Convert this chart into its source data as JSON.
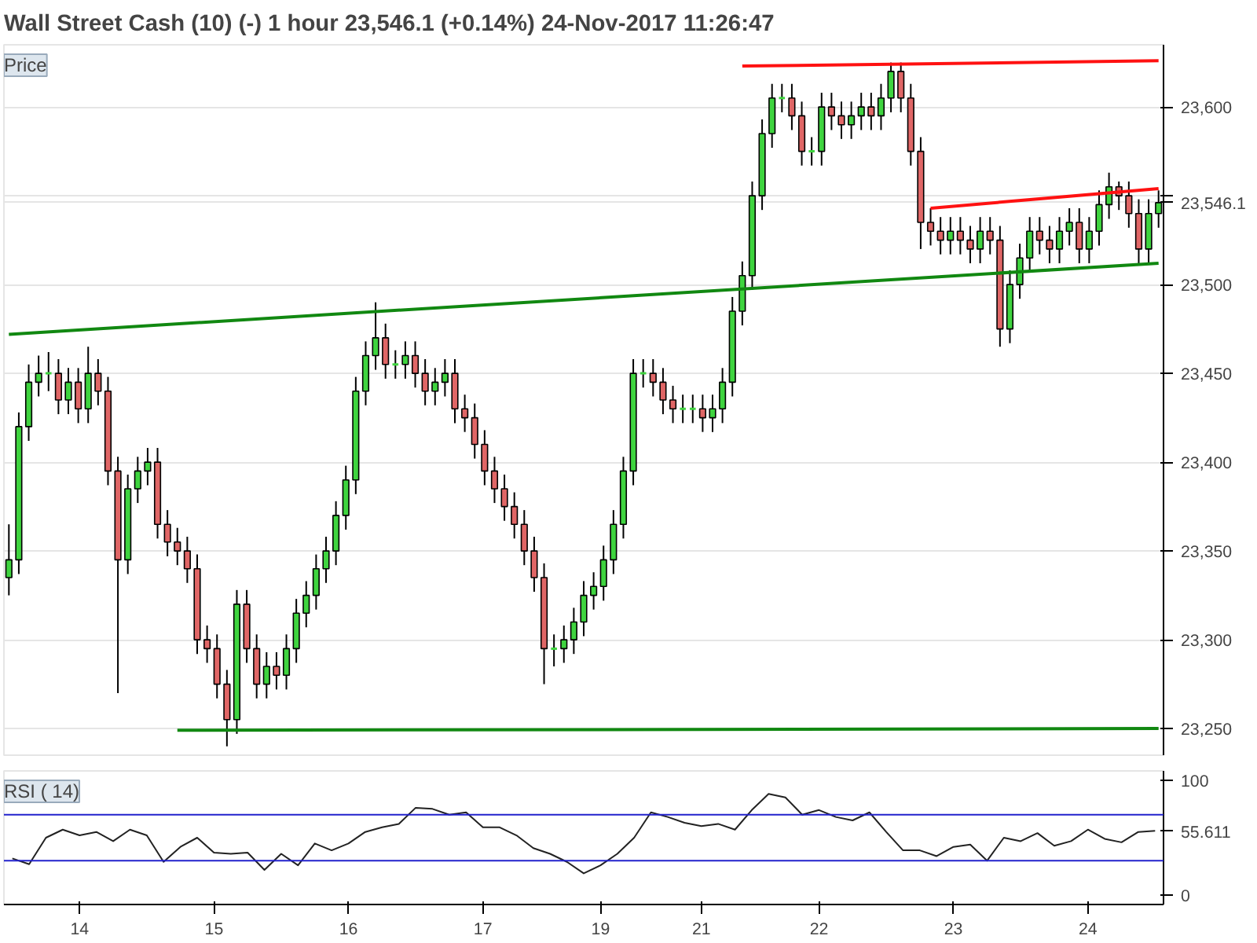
{
  "chart_data": [
    {
      "type": "candlestick",
      "title": "Wall Street Cash (10) (-)   1 hour   23,546.1 (+0.14%)   24-Nov-2017 11:26:47",
      "annotations": [
        "Price"
      ],
      "categories": [
        null,
        null,
        null,
        null,
        null,
        null,
        null,
        null,
        null,
        null,
        null,
        null,
        null,
        null,
        null,
        null,
        null,
        null,
        null,
        null,
        null,
        null,
        null,
        null,
        null,
        null,
        null,
        null,
        null,
        null,
        null,
        null,
        null,
        null,
        null,
        null,
        null,
        null,
        null,
        null,
        null,
        null,
        null,
        null,
        null,
        null,
        null,
        null,
        null,
        null,
        null,
        null,
        null,
        null,
        null,
        null,
        null,
        null,
        null,
        null,
        null,
        null,
        null,
        null,
        null,
        null,
        null,
        null,
        null,
        null,
        null,
        null,
        null,
        null,
        null,
        null,
        null,
        null,
        null,
        null,
        null,
        null,
        null,
        null,
        null,
        null,
        null,
        null,
        null,
        null,
        null,
        null,
        null,
        null,
        null,
        null,
        null,
        null,
        null,
        null,
        null,
        null,
        null,
        null,
        null,
        null,
        null,
        null,
        null,
        null,
        null,
        null,
        null,
        null,
        null,
        null,
        null
      ],
      "ohlc": [
        [
          23335,
          23365,
          23325,
          23345
        ],
        [
          23345,
          23428,
          23337,
          23420
        ],
        [
          23420,
          23455,
          23412,
          23445
        ],
        [
          23445,
          23460,
          23437,
          23450
        ],
        [
          23450,
          23462,
          23440,
          23450
        ],
        [
          23450,
          23458,
          23427,
          23435
        ],
        [
          23435,
          23453,
          23427,
          23445
        ],
        [
          23445,
          23453,
          23422,
          23430
        ],
        [
          23430,
          23465,
          23422,
          23450
        ],
        [
          23450,
          23458,
          23432,
          23440
        ],
        [
          23440,
          23448,
          23387,
          23395
        ],
        [
          23395,
          23403,
          23270,
          23345
        ],
        [
          23345,
          23393,
          23337,
          23385
        ],
        [
          23385,
          23403,
          23377,
          23395
        ],
        [
          23395,
          23408,
          23387,
          23400
        ],
        [
          23400,
          23408,
          23357,
          23365
        ],
        [
          23365,
          23373,
          23347,
          23355
        ],
        [
          23355,
          23363,
          23342,
          23350
        ],
        [
          23350,
          23358,
          23332,
          23340
        ],
        [
          23340,
          23348,
          23292,
          23300
        ],
        [
          23300,
          23308,
          23287,
          23295
        ],
        [
          23295,
          23303,
          23267,
          23275
        ],
        [
          23275,
          23283,
          23240,
          23255
        ],
        [
          23255,
          23328,
          23247,
          23320
        ],
        [
          23320,
          23328,
          23287,
          23295
        ],
        [
          23295,
          23303,
          23267,
          23275
        ],
        [
          23275,
          23293,
          23267,
          23285
        ],
        [
          23285,
          23293,
          23272,
          23280
        ],
        [
          23280,
          23303,
          23272,
          23295
        ],
        [
          23295,
          23323,
          23287,
          23315
        ],
        [
          23315,
          23333,
          23307,
          23325
        ],
        [
          23325,
          23348,
          23317,
          23340
        ],
        [
          23340,
          23358,
          23332,
          23350
        ],
        [
          23350,
          23378,
          23342,
          23370
        ],
        [
          23370,
          23398,
          23362,
          23390
        ],
        [
          23390,
          23448,
          23382,
          23440
        ],
        [
          23440,
          23468,
          23432,
          23460
        ],
        [
          23460,
          23490,
          23452,
          23470
        ],
        [
          23470,
          23478,
          23447,
          23455
        ],
        [
          23455,
          23463,
          23447,
          23455
        ],
        [
          23455,
          23468,
          23447,
          23460
        ],
        [
          23460,
          23468,
          23442,
          23450
        ],
        [
          23450,
          23458,
          23432,
          23440
        ],
        [
          23440,
          23453,
          23432,
          23445
        ],
        [
          23445,
          23458,
          23437,
          23450
        ],
        [
          23450,
          23458,
          23422,
          23430
        ],
        [
          23430,
          23438,
          23417,
          23425
        ],
        [
          23425,
          23433,
          23402,
          23410
        ],
        [
          23410,
          23418,
          23387,
          23395
        ],
        [
          23395,
          23403,
          23377,
          23385
        ],
        [
          23385,
          23393,
          23367,
          23375
        ],
        [
          23375,
          23383,
          23357,
          23365
        ],
        [
          23365,
          23373,
          23342,
          23350
        ],
        [
          23350,
          23358,
          23327,
          23335
        ],
        [
          23335,
          23343,
          23275,
          23295
        ],
        [
          23295,
          23303,
          23285,
          23295
        ],
        [
          23295,
          23308,
          23287,
          23300
        ],
        [
          23300,
          23318,
          23292,
          23310
        ],
        [
          23310,
          23333,
          23302,
          23325
        ],
        [
          23325,
          23338,
          23317,
          23330
        ],
        [
          23330,
          23353,
          23322,
          23345
        ],
        [
          23345,
          23373,
          23337,
          23365
        ],
        [
          23365,
          23403,
          23357,
          23395
        ],
        [
          23395,
          23458,
          23387,
          23450
        ],
        [
          23450,
          23458,
          23442,
          23450
        ],
        [
          23450,
          23458,
          23437,
          23445
        ],
        [
          23445,
          23453,
          23427,
          23435
        ],
        [
          23435,
          23443,
          23422,
          23430
        ],
        [
          23430,
          23438,
          23422,
          23430
        ],
        [
          23430,
          23438,
          23422,
          23430
        ],
        [
          23430,
          23438,
          23417,
          23425
        ],
        [
          23425,
          23438,
          23417,
          23430
        ],
        [
          23430,
          23453,
          23422,
          23445
        ],
        [
          23445,
          23493,
          23437,
          23485
        ],
        [
          23485,
          23513,
          23477,
          23505
        ],
        [
          23505,
          23558,
          23497,
          23550
        ],
        [
          23550,
          23593,
          23542,
          23585
        ],
        [
          23585,
          23613,
          23577,
          23605
        ],
        [
          23605,
          23613,
          23597,
          23605
        ],
        [
          23605,
          23613,
          23587,
          23595
        ],
        [
          23595,
          23603,
          23567,
          23575
        ],
        [
          23575,
          23583,
          23567,
          23575
        ],
        [
          23575,
          23608,
          23567,
          23600
        ],
        [
          23600,
          23608,
          23587,
          23595
        ],
        [
          23595,
          23603,
          23582,
          23590
        ],
        [
          23590,
          23603,
          23582,
          23595
        ],
        [
          23595,
          23608,
          23587,
          23600
        ],
        [
          23600,
          23608,
          23587,
          23595
        ],
        [
          23595,
          23613,
          23587,
          23605
        ],
        [
          23605,
          23625,
          23597,
          23620
        ],
        [
          23620,
          23625,
          23597,
          23605
        ],
        [
          23605,
          23613,
          23567,
          23575
        ],
        [
          23575,
          23583,
          23520,
          23535
        ],
        [
          23535,
          23543,
          23522,
          23530
        ],
        [
          23530,
          23538,
          23517,
          23525
        ],
        [
          23525,
          23538,
          23517,
          23530
        ],
        [
          23530,
          23538,
          23517,
          23525
        ],
        [
          23525,
          23533,
          23512,
          23520
        ],
        [
          23520,
          23538,
          23512,
          23530
        ],
        [
          23530,
          23538,
          23517,
          23525
        ],
        [
          23525,
          23533,
          23465,
          23475
        ],
        [
          23475,
          23508,
          23467,
          23500
        ],
        [
          23500,
          23523,
          23492,
          23515
        ],
        [
          23515,
          23538,
          23507,
          23530
        ],
        [
          23530,
          23538,
          23517,
          23525
        ],
        [
          23525,
          23533,
          23512,
          23520
        ],
        [
          23520,
          23538,
          23512,
          23530
        ],
        [
          23530,
          23543,
          23522,
          23535
        ],
        [
          23535,
          23543,
          23512,
          23520
        ],
        [
          23520,
          23538,
          23512,
          23530
        ],
        [
          23530,
          23553,
          23522,
          23545
        ],
        [
          23545,
          23563,
          23537,
          23555
        ],
        [
          23555,
          23558,
          23542,
          23550
        ],
        [
          23550,
          23558,
          23532,
          23540
        ],
        [
          23540,
          23548,
          23512,
          23520
        ],
        [
          23520,
          23548,
          23512,
          23540
        ],
        [
          23540,
          23553,
          23532,
          23546.1
        ]
      ],
      "colors": [
        "#3fd43f",
        "#3fd43f",
        "#3fd43f",
        "#3fd43f",
        "#3fd43f",
        "#e06666",
        "#3fd43f",
        "#e06666",
        "#3fd43f",
        "#e06666",
        "#e06666",
        "#e06666",
        "#3fd43f",
        "#3fd43f",
        "#3fd43f",
        "#e06666",
        "#e06666",
        "#e06666",
        "#e06666",
        "#e06666",
        "#e06666",
        "#e06666",
        "#e06666",
        "#3fd43f",
        "#e06666",
        "#e06666",
        "#3fd43f",
        "#e06666",
        "#3fd43f",
        "#3fd43f",
        "#3fd43f",
        "#3fd43f",
        "#3fd43f",
        "#3fd43f",
        "#3fd43f",
        "#3fd43f",
        "#3fd43f",
        "#3fd43f",
        "#e06666",
        "#3fd43f",
        "#3fd43f",
        "#e06666",
        "#e06666",
        "#3fd43f",
        "#3fd43f",
        "#e06666",
        "#e06666",
        "#e06666",
        "#e06666",
        "#e06666",
        "#e06666",
        "#e06666",
        "#e06666",
        "#e06666",
        "#e06666",
        "#3fd43f",
        "#3fd43f",
        "#3fd43f",
        "#3fd43f",
        "#3fd43f",
        "#3fd43f",
        "#3fd43f",
        "#3fd43f",
        "#3fd43f",
        "#3fd43f",
        "#e06666",
        "#e06666",
        "#e06666",
        "#3fd43f",
        "#3fd43f",
        "#e06666",
        "#3fd43f",
        "#3fd43f",
        "#3fd43f",
        "#3fd43f",
        "#3fd43f",
        "#3fd43f",
        "#3fd43f",
        "#3fd43f",
        "#e06666",
        "#e06666",
        "#3fd43f",
        "#3fd43f",
        "#e06666",
        "#e06666",
        "#3fd43f",
        "#3fd43f",
        "#e06666",
        "#3fd43f",
        "#3fd43f",
        "#e06666",
        "#e06666",
        "#e06666",
        "#e06666",
        "#e06666",
        "#3fd43f",
        "#e06666",
        "#e06666",
        "#3fd43f",
        "#e06666",
        "#e06666",
        "#3fd43f",
        "#3fd43f",
        "#3fd43f",
        "#e06666",
        "#e06666",
        "#3fd43f",
        "#3fd43f",
        "#e06666",
        "#3fd43f",
        "#3fd43f",
        "#3fd43f",
        "#e06666",
        "#e06666",
        "#e06666",
        "#3fd43f",
        "#3fd43f"
      ],
      "series": [
        {
          "type": "line",
          "color": "#118811",
          "values": [
            23472,
            null,
            null,
            null,
            null,
            null,
            null,
            null,
            null,
            null,
            null,
            null,
            null,
            null,
            null,
            null,
            null,
            null,
            null,
            null,
            null,
            null,
            null,
            null,
            null,
            null,
            null,
            null,
            null,
            null,
            null,
            null,
            null,
            null,
            null,
            null,
            null,
            null,
            null,
            null,
            null,
            null,
            null,
            null,
            null,
            null,
            null,
            null,
            null,
            null,
            null,
            null,
            null,
            null,
            null,
            null,
            null,
            null,
            null,
            null,
            null,
            null,
            null,
            null,
            null,
            null,
            null,
            null,
            null,
            null,
            null,
            null,
            null,
            null,
            null,
            null,
            null,
            null,
            null,
            null,
            null,
            null,
            null,
            null,
            null,
            null,
            null,
            null,
            null,
            null,
            null,
            null,
            null,
            null,
            null,
            null,
            null,
            null,
            null,
            null,
            null,
            null,
            null,
            null,
            null,
            null,
            null,
            null,
            null,
            null,
            null,
            null,
            null,
            null,
            null,
            null,
            23512
          ]
        },
        {
          "type": "line",
          "color": "#118811",
          "values": [
            null,
            null,
            null,
            null,
            null,
            null,
            null,
            null,
            null,
            null,
            null,
            null,
            null,
            null,
            null,
            null,
            null,
            23249,
            null,
            null,
            null,
            null,
            null,
            null,
            null,
            null,
            null,
            null,
            null,
            null,
            null,
            null,
            null,
            null,
            null,
            null,
            null,
            null,
            null,
            null,
            null,
            null,
            null,
            null,
            null,
            null,
            null,
            null,
            null,
            null,
            null,
            null,
            null,
            null,
            null,
            null,
            null,
            null,
            null,
            null,
            null,
            null,
            null,
            null,
            null,
            null,
            null,
            null,
            null,
            null,
            null,
            null,
            null,
            null,
            null,
            null,
            null,
            null,
            null,
            null,
            null,
            null,
            null,
            null,
            null,
            null,
            null,
            null,
            null,
            null,
            null,
            null,
            null,
            null,
            null,
            null,
            null,
            null,
            null,
            null,
            null,
            null,
            null,
            null,
            null,
            null,
            null,
            null,
            null,
            null,
            null,
            null,
            null,
            null,
            null,
            null,
            23250
          ]
        },
        {
          "type": "line",
          "color": "#ff1111",
          "values": [
            null,
            null,
            null,
            null,
            null,
            null,
            null,
            null,
            null,
            null,
            null,
            null,
            null,
            null,
            null,
            null,
            null,
            null,
            null,
            null,
            null,
            null,
            null,
            null,
            null,
            null,
            null,
            null,
            null,
            null,
            null,
            null,
            null,
            null,
            null,
            null,
            null,
            null,
            null,
            null,
            null,
            null,
            null,
            null,
            null,
            null,
            null,
            null,
            null,
            null,
            null,
            null,
            null,
            null,
            null,
            null,
            null,
            null,
            null,
            null,
            null,
            null,
            null,
            null,
            null,
            null,
            null,
            null,
            null,
            null,
            null,
            null,
            null,
            null,
            23623,
            null,
            null,
            null,
            null,
            null,
            null,
            null,
            null,
            null,
            null,
            null,
            null,
            null,
            null,
            null,
            null,
            null,
            null,
            null,
            null,
            null,
            null,
            null,
            null,
            null,
            null,
            null,
            null,
            null,
            null,
            null,
            null,
            null,
            null,
            null,
            null,
            null,
            null,
            null,
            null,
            null,
            23626
          ]
        },
        {
          "type": "line",
          "color": "#ff1111",
          "values": [
            null,
            null,
            null,
            null,
            null,
            null,
            null,
            null,
            null,
            null,
            null,
            null,
            null,
            null,
            null,
            null,
            null,
            null,
            null,
            null,
            null,
            null,
            null,
            null,
            null,
            null,
            null,
            null,
            null,
            null,
            null,
            null,
            null,
            null,
            null,
            null,
            null,
            null,
            null,
            null,
            null,
            null,
            null,
            null,
            null,
            null,
            null,
            null,
            null,
            null,
            null,
            null,
            null,
            null,
            null,
            null,
            null,
            null,
            null,
            null,
            null,
            null,
            null,
            null,
            null,
            null,
            null,
            null,
            null,
            null,
            null,
            null,
            null,
            null,
            null,
            null,
            null,
            null,
            null,
            null,
            null,
            null,
            null,
            null,
            null,
            null,
            null,
            null,
            null,
            null,
            null,
            null,
            null,
            23543,
            null,
            null,
            null,
            null,
            null,
            null,
            null,
            null,
            null,
            null,
            null,
            null,
            null,
            null,
            null,
            null,
            null,
            null,
            null,
            null,
            null,
            null,
            23554
          ]
        }
      ],
      "ylim": [
        23235,
        23635
      ],
      "yticks": [
        {
          "value": 23250,
          "label": "23,250"
        },
        {
          "value": 23300,
          "label": "23,300"
        },
        {
          "value": 23350,
          "label": "23,350"
        },
        {
          "value": 23400,
          "label": "23,400"
        },
        {
          "value": 23450,
          "label": "23,450"
        },
        {
          "value": 23500,
          "label": "23,500"
        },
        {
          "value": 23546.1,
          "label": "23,546.1"
        },
        {
          "value": 23550,
          "label": null
        },
        {
          "value": 23600,
          "label": "23,600"
        }
      ],
      "grid": "y",
      "tick_labels": "y"
    },
    {
      "type": "line",
      "annotations": [
        "RSI ( 14)"
      ],
      "categories": [
        null,
        null,
        null,
        null,
        "14",
        null,
        null,
        null,
        null,
        null,
        null,
        null,
        "15",
        null,
        null,
        null,
        null,
        null,
        null,
        null,
        "16",
        null,
        null,
        null,
        null,
        null,
        null,
        null,
        "17",
        null,
        null,
        null,
        null,
        null,
        null,
        "19",
        null,
        null,
        null,
        null,
        null,
        "21",
        null,
        null,
        null,
        null,
        null,
        null,
        "22",
        null,
        null,
        null,
        null,
        null,
        null,
        null,
        "23",
        null,
        null,
        null,
        null,
        null,
        null,
        null,
        "24",
        null,
        null,
        null,
        null
      ],
      "series": [
        {
          "color": "#222222",
          "values": [
            32,
            27,
            50,
            57,
            52,
            55,
            47,
            57,
            52,
            29,
            42,
            50,
            37,
            36,
            37,
            22,
            36,
            26,
            45,
            39,
            45,
            55,
            59,
            62,
            76,
            75,
            70,
            72,
            59,
            59,
            52,
            41,
            36,
            29,
            19,
            26,
            36,
            50,
            72,
            68,
            63,
            60,
            62,
            57,
            74,
            88,
            85,
            70,
            74,
            68,
            65,
            72,
            55,
            39,
            39,
            34,
            42,
            44,
            30,
            50,
            47,
            54,
            43,
            47,
            57,
            49,
            46,
            55,
            56
          ]
        }
      ],
      "ref_lines": [
        {
          "axis": "y",
          "value": 70,
          "color": "#2222cc"
        },
        {
          "axis": "y",
          "value": 30,
          "color": "#2222cc"
        }
      ],
      "ylim": [
        -8,
        108
      ],
      "yticks": [
        0,
        {
          "value": 55.611,
          "label": "55.611"
        },
        100
      ],
      "grid": false
    }
  ]
}
